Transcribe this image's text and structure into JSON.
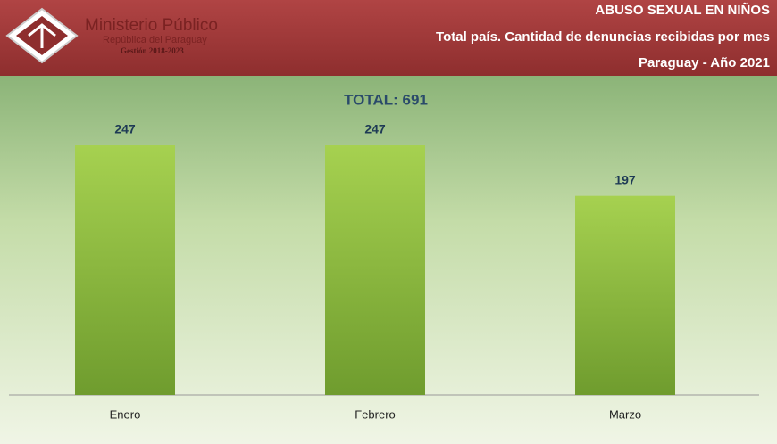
{
  "header": {
    "org": "Ministerio Público",
    "org_sub": "República del Paraguay",
    "term": "Gestión 2018-2023"
  },
  "chart_data": {
    "type": "bar",
    "title": "ABUSO SEXUAL EN NIÑOS",
    "subtitle": [
      "Total país. Cantidad de denuncias recibidas por mes",
      "Paraguay - Año 2021"
    ],
    "annotation": "TOTAL: 691",
    "categories": [
      "Enero",
      "Febrero",
      "Marzo"
    ],
    "values": [
      247,
      247,
      197
    ],
    "color": "#8fbf3f"
  }
}
